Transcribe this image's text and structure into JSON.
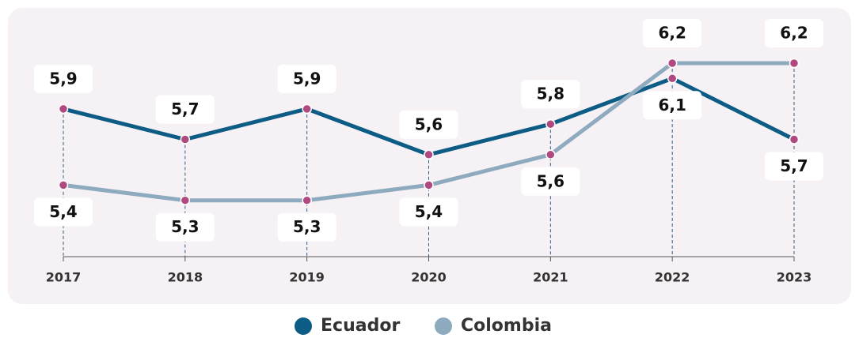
{
  "chart_data": {
    "type": "line",
    "categories": [
      "2017",
      "2018",
      "2019",
      "2020",
      "2021",
      "2022",
      "2023"
    ],
    "series": [
      {
        "name": "Ecuador",
        "color": "#0d5c85",
        "values": [
          5.9,
          5.7,
          5.9,
          5.6,
          5.8,
          6.1,
          5.7
        ],
        "value_labels": [
          "5,9",
          "5,7",
          "5,9",
          "5,6",
          "5,8",
          "6,1",
          "5,7"
        ]
      },
      {
        "name": "Colombia",
        "color": "#8eaabe",
        "values": [
          5.4,
          5.3,
          5.3,
          5.4,
          5.6,
          6.2,
          6.2
        ],
        "value_labels": [
          "5,4",
          "5,3",
          "5,3",
          "5,4",
          "5,6",
          "6,2",
          "6,2"
        ]
      }
    ],
    "marker_color": "#b0497f",
    "legend": "bottom"
  }
}
